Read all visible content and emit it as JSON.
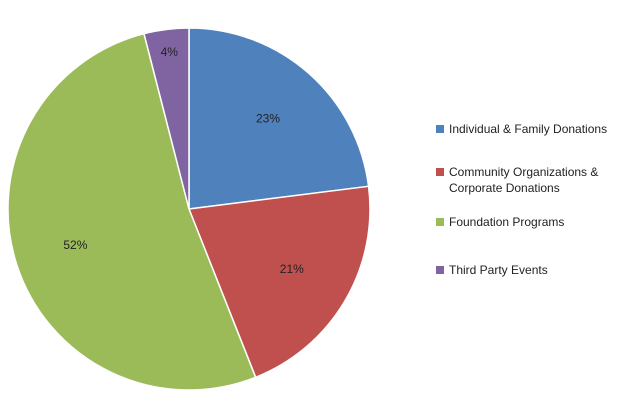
{
  "chart_data": {
    "type": "pie",
    "categories": [
      "Individual & Family Donations",
      "Community Organizations & Corporate Donations",
      "Foundation Programs",
      "Third Party Events"
    ],
    "values": [
      23,
      21,
      52,
      4
    ],
    "labels": [
      "23%",
      "21%",
      "52%",
      "4%"
    ],
    "colors": [
      "#4f81bd",
      "#c0504d",
      "#9bbb59",
      "#8064a2"
    ],
    "legend": {
      "position": "right",
      "entries": [
        {
          "lines": [
            "Individual & Family Donations"
          ]
        },
        {
          "lines": [
            "Community Organizations &",
            "Corporate Donations"
          ]
        },
        {
          "lines": [
            "Foundation Programs"
          ]
        },
        {
          "lines": [
            "Third Party Events"
          ]
        }
      ]
    }
  }
}
